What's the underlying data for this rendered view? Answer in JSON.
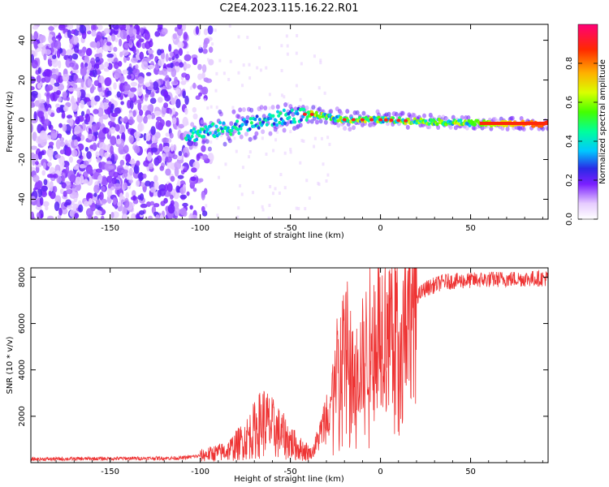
{
  "title": "C2E4.2023.115.16.22.R01",
  "chart_data": [
    {
      "type": "heatmap",
      "xlabel": "Height of straight line (km)",
      "ylabel": "Frequency (Hz)",
      "xlim": [
        -194,
        93
      ],
      "ylim": [
        -50,
        48
      ],
      "xticks": [
        -150,
        -100,
        -50,
        0,
        50
      ],
      "yticks": [
        -40,
        -20,
        0,
        20,
        40
      ],
      "colorbar": {
        "label": "Normalized spectral amplitude",
        "range": [
          0,
          1
        ],
        "ticks": [
          "0.0",
          "0.2",
          "0.4",
          "0.6",
          "0.8"
        ]
      },
      "ridge": {
        "description_points": [
          {
            "x": -108,
            "y": -8
          },
          {
            "x": -90,
            "y": -5
          },
          {
            "x": -70,
            "y": -2
          },
          {
            "x": -50,
            "y": 2
          },
          {
            "x": -40,
            "y": 3
          },
          {
            "x": -20,
            "y": 0
          },
          {
            "x": 0,
            "y": 0
          },
          {
            "x": 30,
            "y": -1
          },
          {
            "x": 60,
            "y": -2
          },
          {
            "x": 93,
            "y": -2
          }
        ],
        "noise_region_xmax": -108
      }
    },
    {
      "type": "line",
      "xlabel": "Height of straight line (km)",
      "ylabel": "SNR (10 * v/v)",
      "xlim": [
        -194,
        93
      ],
      "ylim": [
        0,
        8400
      ],
      "xticks": [
        -150,
        -100,
        -50,
        0,
        50
      ],
      "yticks": [
        2000,
        4000,
        6000,
        8000
      ],
      "series": [
        {
          "name": "SNR",
          "color": "#ee3333",
          "envelope": [
            {
              "x": -194,
              "y": 150
            },
            {
              "x": -110,
              "y": 200
            },
            {
              "x": -100,
              "y": 300
            },
            {
              "x": -85,
              "y": 500
            },
            {
              "x": -75,
              "y": 1000
            },
            {
              "x": -65,
              "y": 1800
            },
            {
              "x": -55,
              "y": 1200
            },
            {
              "x": -45,
              "y": 600
            },
            {
              "x": -38,
              "y": 400
            },
            {
              "x": -32,
              "y": 1500
            },
            {
              "x": -25,
              "y": 3500
            },
            {
              "x": -20,
              "y": 6000
            },
            {
              "x": -15,
              "y": 3500
            },
            {
              "x": -5,
              "y": 5500
            },
            {
              "x": 5,
              "y": 6200
            },
            {
              "x": 15,
              "y": 6800
            },
            {
              "x": 25,
              "y": 7500
            },
            {
              "x": 35,
              "y": 7800
            },
            {
              "x": 60,
              "y": 7900
            },
            {
              "x": 93,
              "y": 7950
            }
          ]
        }
      ]
    }
  ]
}
